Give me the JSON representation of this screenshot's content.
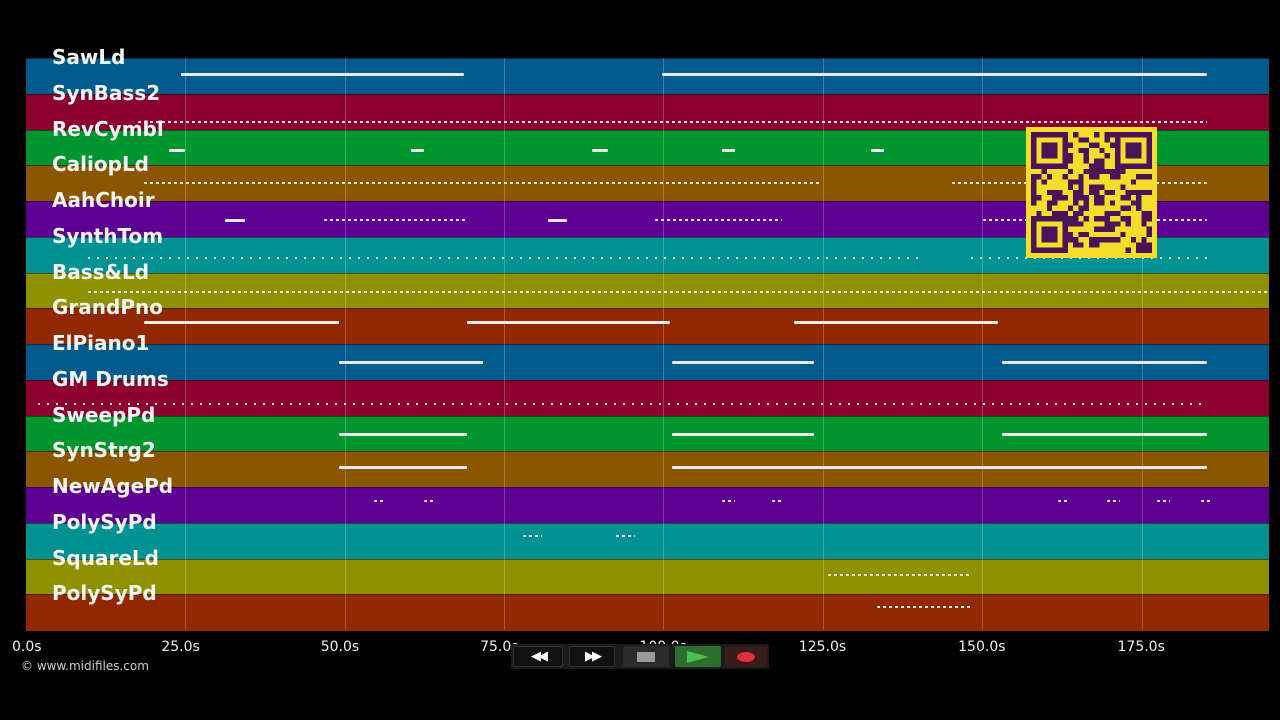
{
  "tracks": [
    {
      "name": "SawLd",
      "color": "#005a8c"
    },
    {
      "name": "SynBass2",
      "color": "#8c0030"
    },
    {
      "name": "RevCymbl",
      "color": "#00962e"
    },
    {
      "name": "CaliopLd",
      "color": "#8c5600"
    },
    {
      "name": "AahChoir",
      "color": "#5e0092"
    },
    {
      "name": "SynthTom",
      "color": "#009292"
    },
    {
      "name": "Bass&Ld",
      "color": "#8f9200"
    },
    {
      "name": "GrandPno",
      "color": "#922800"
    },
    {
      "name": "ElPiano1",
      "color": "#005a8c"
    },
    {
      "name": "GM Drums",
      "color": "#8c0030"
    },
    {
      "name": "SweepPd",
      "color": "#00962e"
    },
    {
      "name": "SynStrg2",
      "color": "#8c5600"
    },
    {
      "name": "NewAgePd",
      "color": "#5e0092"
    },
    {
      "name": "PolySyPd",
      "color": "#009292"
    },
    {
      "name": "SquareLd",
      "color": "#8f9200"
    },
    {
      "name": "PolySyPd",
      "color": "#922800"
    }
  ],
  "timeline": {
    "ticks": [
      "0.0s",
      "25.0s",
      "50.0s",
      "75.0s",
      "100.0s",
      "125.0s",
      "150.0s",
      "175.0s"
    ],
    "tick_seconds": [
      0,
      25,
      50,
      75,
      100,
      125,
      150,
      175
    ],
    "duration_seconds": 195
  },
  "copyright": "© www.midifiles.com",
  "controls": {
    "rewind_icon": "rewind-icon",
    "fast_forward_icon": "fast-forward-icon",
    "stop_icon": "stop-icon",
    "play_icon": "play-icon",
    "record_icon": "record-icon",
    "play_color": "#2e9a3a",
    "record_color": "#e0303a"
  },
  "qr_code": {
    "icon": "qr-code-icon",
    "fg": "#4a1458",
    "bg": "#f6dd2b"
  }
}
